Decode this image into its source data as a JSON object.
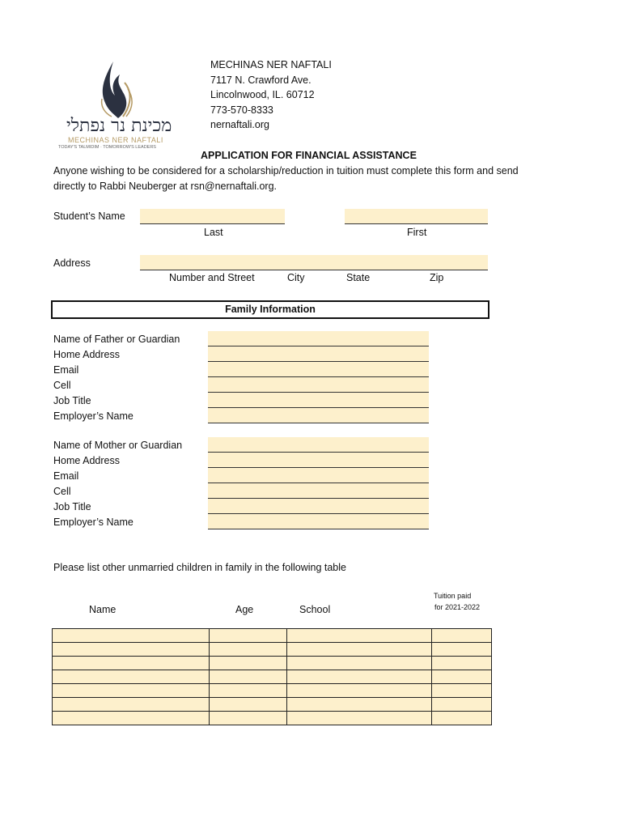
{
  "logo": {
    "hebrew": "מכינת נר נפתלי",
    "name": "MECHINAS NER NAFTALI",
    "tagline": "TODAY'S TALMIDIM · TOMORROW'S LEADERS"
  },
  "org": {
    "name": "MECHINAS NER NAFTALI",
    "street": "7117 N. Crawford Ave.",
    "city": "Lincolnwood, IL. 60712",
    "phone": "773-570-8333",
    "website": "nernaftali.org"
  },
  "title": "APPLICATION FOR FINANCIAL ASSISTANCE",
  "intro_line1": "Anyone wishing to be considered for a scholarship/reduction in tuition must complete this form and send",
  "intro_line2": "directly to Rabbi Neuberger at rsn@nernaftali.org.",
  "student": {
    "label": "Student’s Name",
    "last": "Last",
    "first": "First"
  },
  "address": {
    "label": "Address",
    "street": "Number and Street",
    "city": "City",
    "state": "State",
    "zip": "Zip"
  },
  "family_header": "Family Information",
  "father_fields": [
    "Name of Father or Guardian",
    "Home Address",
    "Email",
    "Cell",
    "Job Title",
    "Employer’s Name"
  ],
  "mother_fields": [
    "Name of Mother or Guardian",
    "Home Address",
    "Email",
    "Cell",
    "Job Title",
    "Employer’s Name"
  ],
  "children_prompt": "Please list other unmarried children in family in the following table",
  "table": {
    "headers": {
      "name": "Name",
      "age": "Age",
      "school": "School",
      "tuition_1": "Tuition paid",
      "tuition_2": "for 2021-2022"
    },
    "rows": 7
  },
  "colors": {
    "field_fill": "#fdf0cc",
    "logo_dark": "#2b3140",
    "logo_gold": "#b59a64"
  }
}
